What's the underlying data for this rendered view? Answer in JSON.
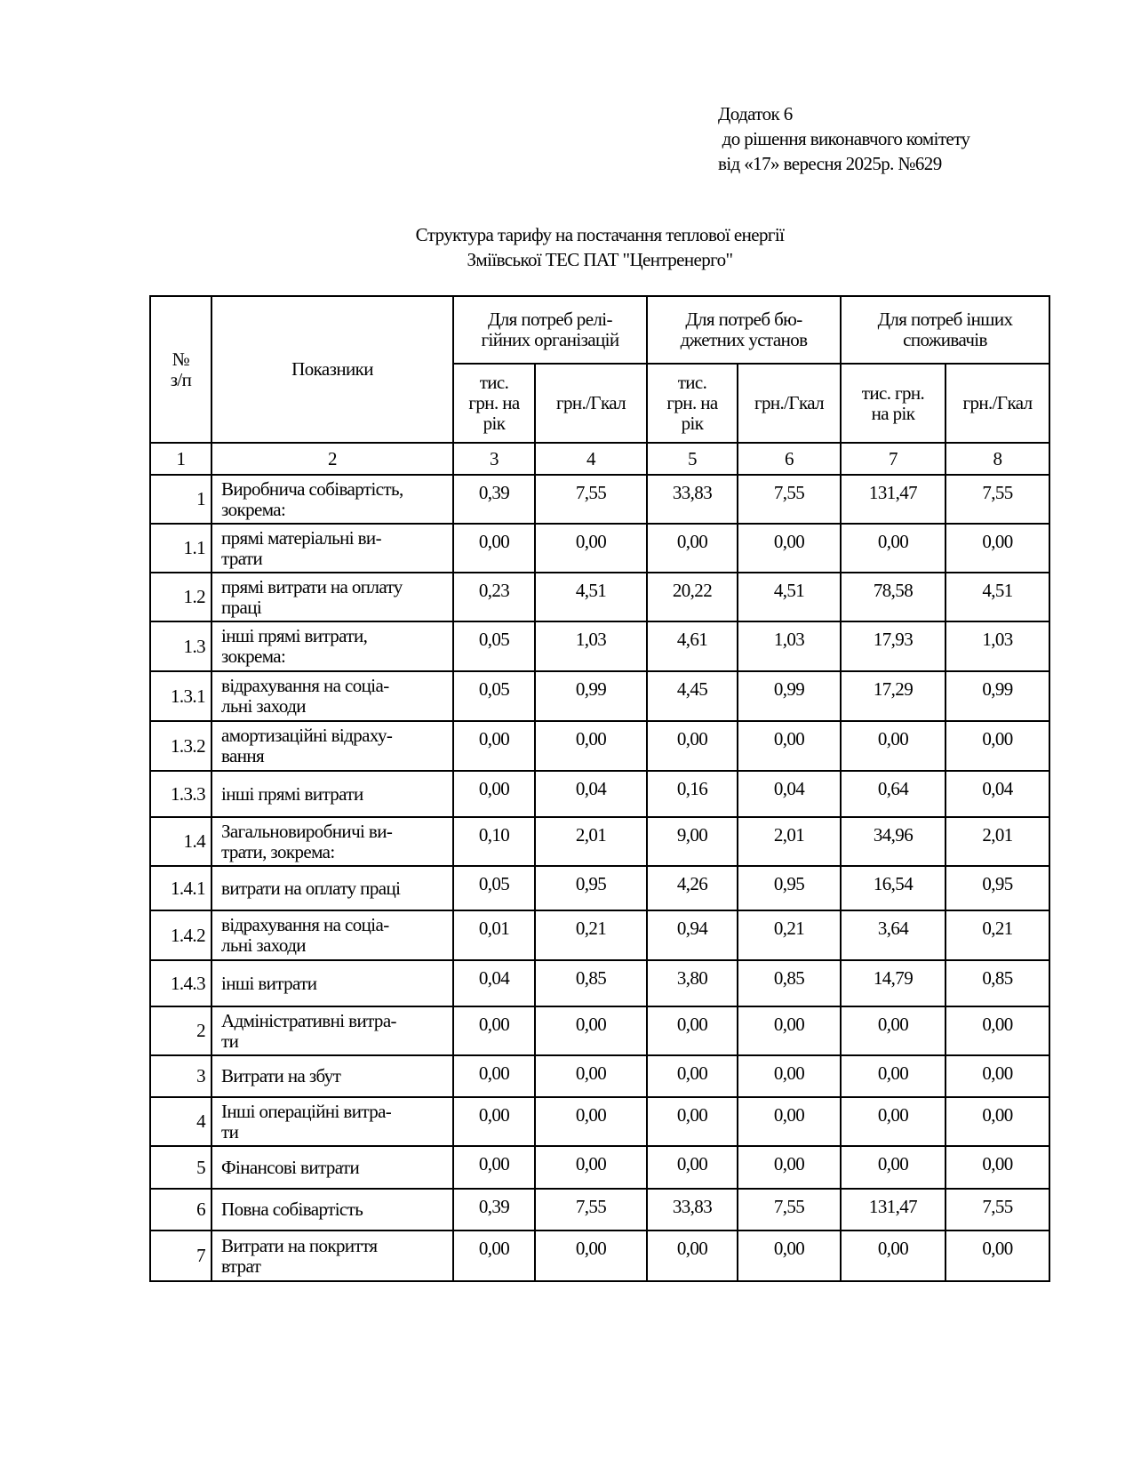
{
  "appendix": {
    "line1": "Додаток 6",
    "line2": " до рішення виконавчого комітету",
    "line3": "від «17» вересня 2025р. №629"
  },
  "title": {
    "line1": "Структура тарифу на постачання теплової енергії",
    "line2": "Зміївської ТЕС ПАТ \"Центренерго\""
  },
  "table": {
    "header": {
      "no": "№\nз/п",
      "indicators": "Показники",
      "groups": [
        "Для  потреб релі-\nгійних організацій",
        "Для  потреб бю-\nджетних установ",
        "Для  потреб інших\nспоживачів"
      ],
      "subcols": [
        "тис.\nгрн. на\nрік",
        "грн./Гкал",
        "тис.\nгрн. на\nрік",
        "грн./Гкал",
        "тис. грн.\nна рік",
        "грн./Гкал"
      ],
      "numbers": [
        "1",
        "2",
        "3",
        "4",
        "5",
        "6",
        "7",
        "8"
      ]
    },
    "rows": [
      {
        "no": "1",
        "label": "Виробнича собівартість,\nзокрема:",
        "values": [
          "0,39",
          "7,55",
          "33,83",
          "7,55",
          "131,47",
          "7,55"
        ]
      },
      {
        "no": "1.1",
        "label": "прямі матеріальні ви-\nтрати",
        "values": [
          "0,00",
          "0,00",
          "0,00",
          "0,00",
          "0,00",
          "0,00"
        ]
      },
      {
        "no": "1.2",
        "label": "прямі витрати на оплату\nпраці",
        "values": [
          "0,23",
          "4,51",
          "20,22",
          "4,51",
          "78,58",
          "4,51"
        ]
      },
      {
        "no": "1.3",
        "label": "інші прямі витрати,\nзокрема:",
        "values": [
          "0,05",
          "1,03",
          "4,61",
          "1,03",
          "17,93",
          "1,03"
        ]
      },
      {
        "no": "1.3.1",
        "label": " відрахування  на соціа-\nльні заходи",
        "values": [
          "0,05",
          "0,99",
          "4,45",
          "0,99",
          "17,29",
          "0,99"
        ]
      },
      {
        "no": "1.3.2",
        "label": " амортизаційні відраху-\nвання",
        "values": [
          "0,00",
          "0,00",
          "0,00",
          "0,00",
          "0,00",
          "0,00"
        ]
      },
      {
        "no": "1.3.3",
        "label": " інші прямі витрати",
        "values": [
          "0,00",
          "0,04",
          "0,16",
          "0,04",
          "0,64",
          "0,04"
        ]
      },
      {
        "no": "1.4",
        "label": "Загальновиробничі ви-\nтрати, зокрема:",
        "values": [
          "0,10",
          "2,01",
          "9,00",
          "2,01",
          "34,96",
          "2,01"
        ]
      },
      {
        "no": "1.4.1",
        "label": "витрати на оплату праці",
        "values": [
          "0,05",
          "0,95",
          "4,26",
          "0,95",
          "16,54",
          "0,95"
        ]
      },
      {
        "no": "1.4.2",
        "label": "відрахування  на соціа-\nльні заходи",
        "values": [
          "0,01",
          "0,21",
          "0,94",
          "0,21",
          "3,64",
          "0,21"
        ]
      },
      {
        "no": "1.4.3",
        "label": "інші витрати",
        "values": [
          "0,04",
          "0,85",
          "3,80",
          "0,85",
          "14,79",
          "0,85"
        ]
      },
      {
        "no": "2",
        "label": "Адміністративні витра-\nти",
        "values": [
          "0,00",
          "0,00",
          "0,00",
          "0,00",
          "0,00",
          "0,00"
        ]
      },
      {
        "no": "3",
        "label": "Витрати на збут",
        "values": [
          "0,00",
          "0,00",
          "0,00",
          "0,00",
          "0,00",
          "0,00"
        ]
      },
      {
        "no": "4",
        "label": "Інші  операційні витра-\nти",
        "values": [
          "0,00",
          "0,00",
          "0,00",
          "0,00",
          "0,00",
          "0,00"
        ]
      },
      {
        "no": "5",
        "label": "Фінансові витрати",
        "values": [
          "0,00",
          "0,00",
          "0,00",
          "0,00",
          "0,00",
          "0,00"
        ]
      },
      {
        "no": "6",
        "label": "Повна собівартість",
        "values": [
          "0,39",
          "7,55",
          "33,83",
          "7,55",
          "131,47",
          "7,55"
        ]
      },
      {
        "no": "7",
        "label": "Витрати на покриття\nвтрат",
        "values": [
          "0,00",
          "0,00",
          "0,00",
          "0,00",
          "0,00",
          "0,00"
        ]
      }
    ]
  }
}
